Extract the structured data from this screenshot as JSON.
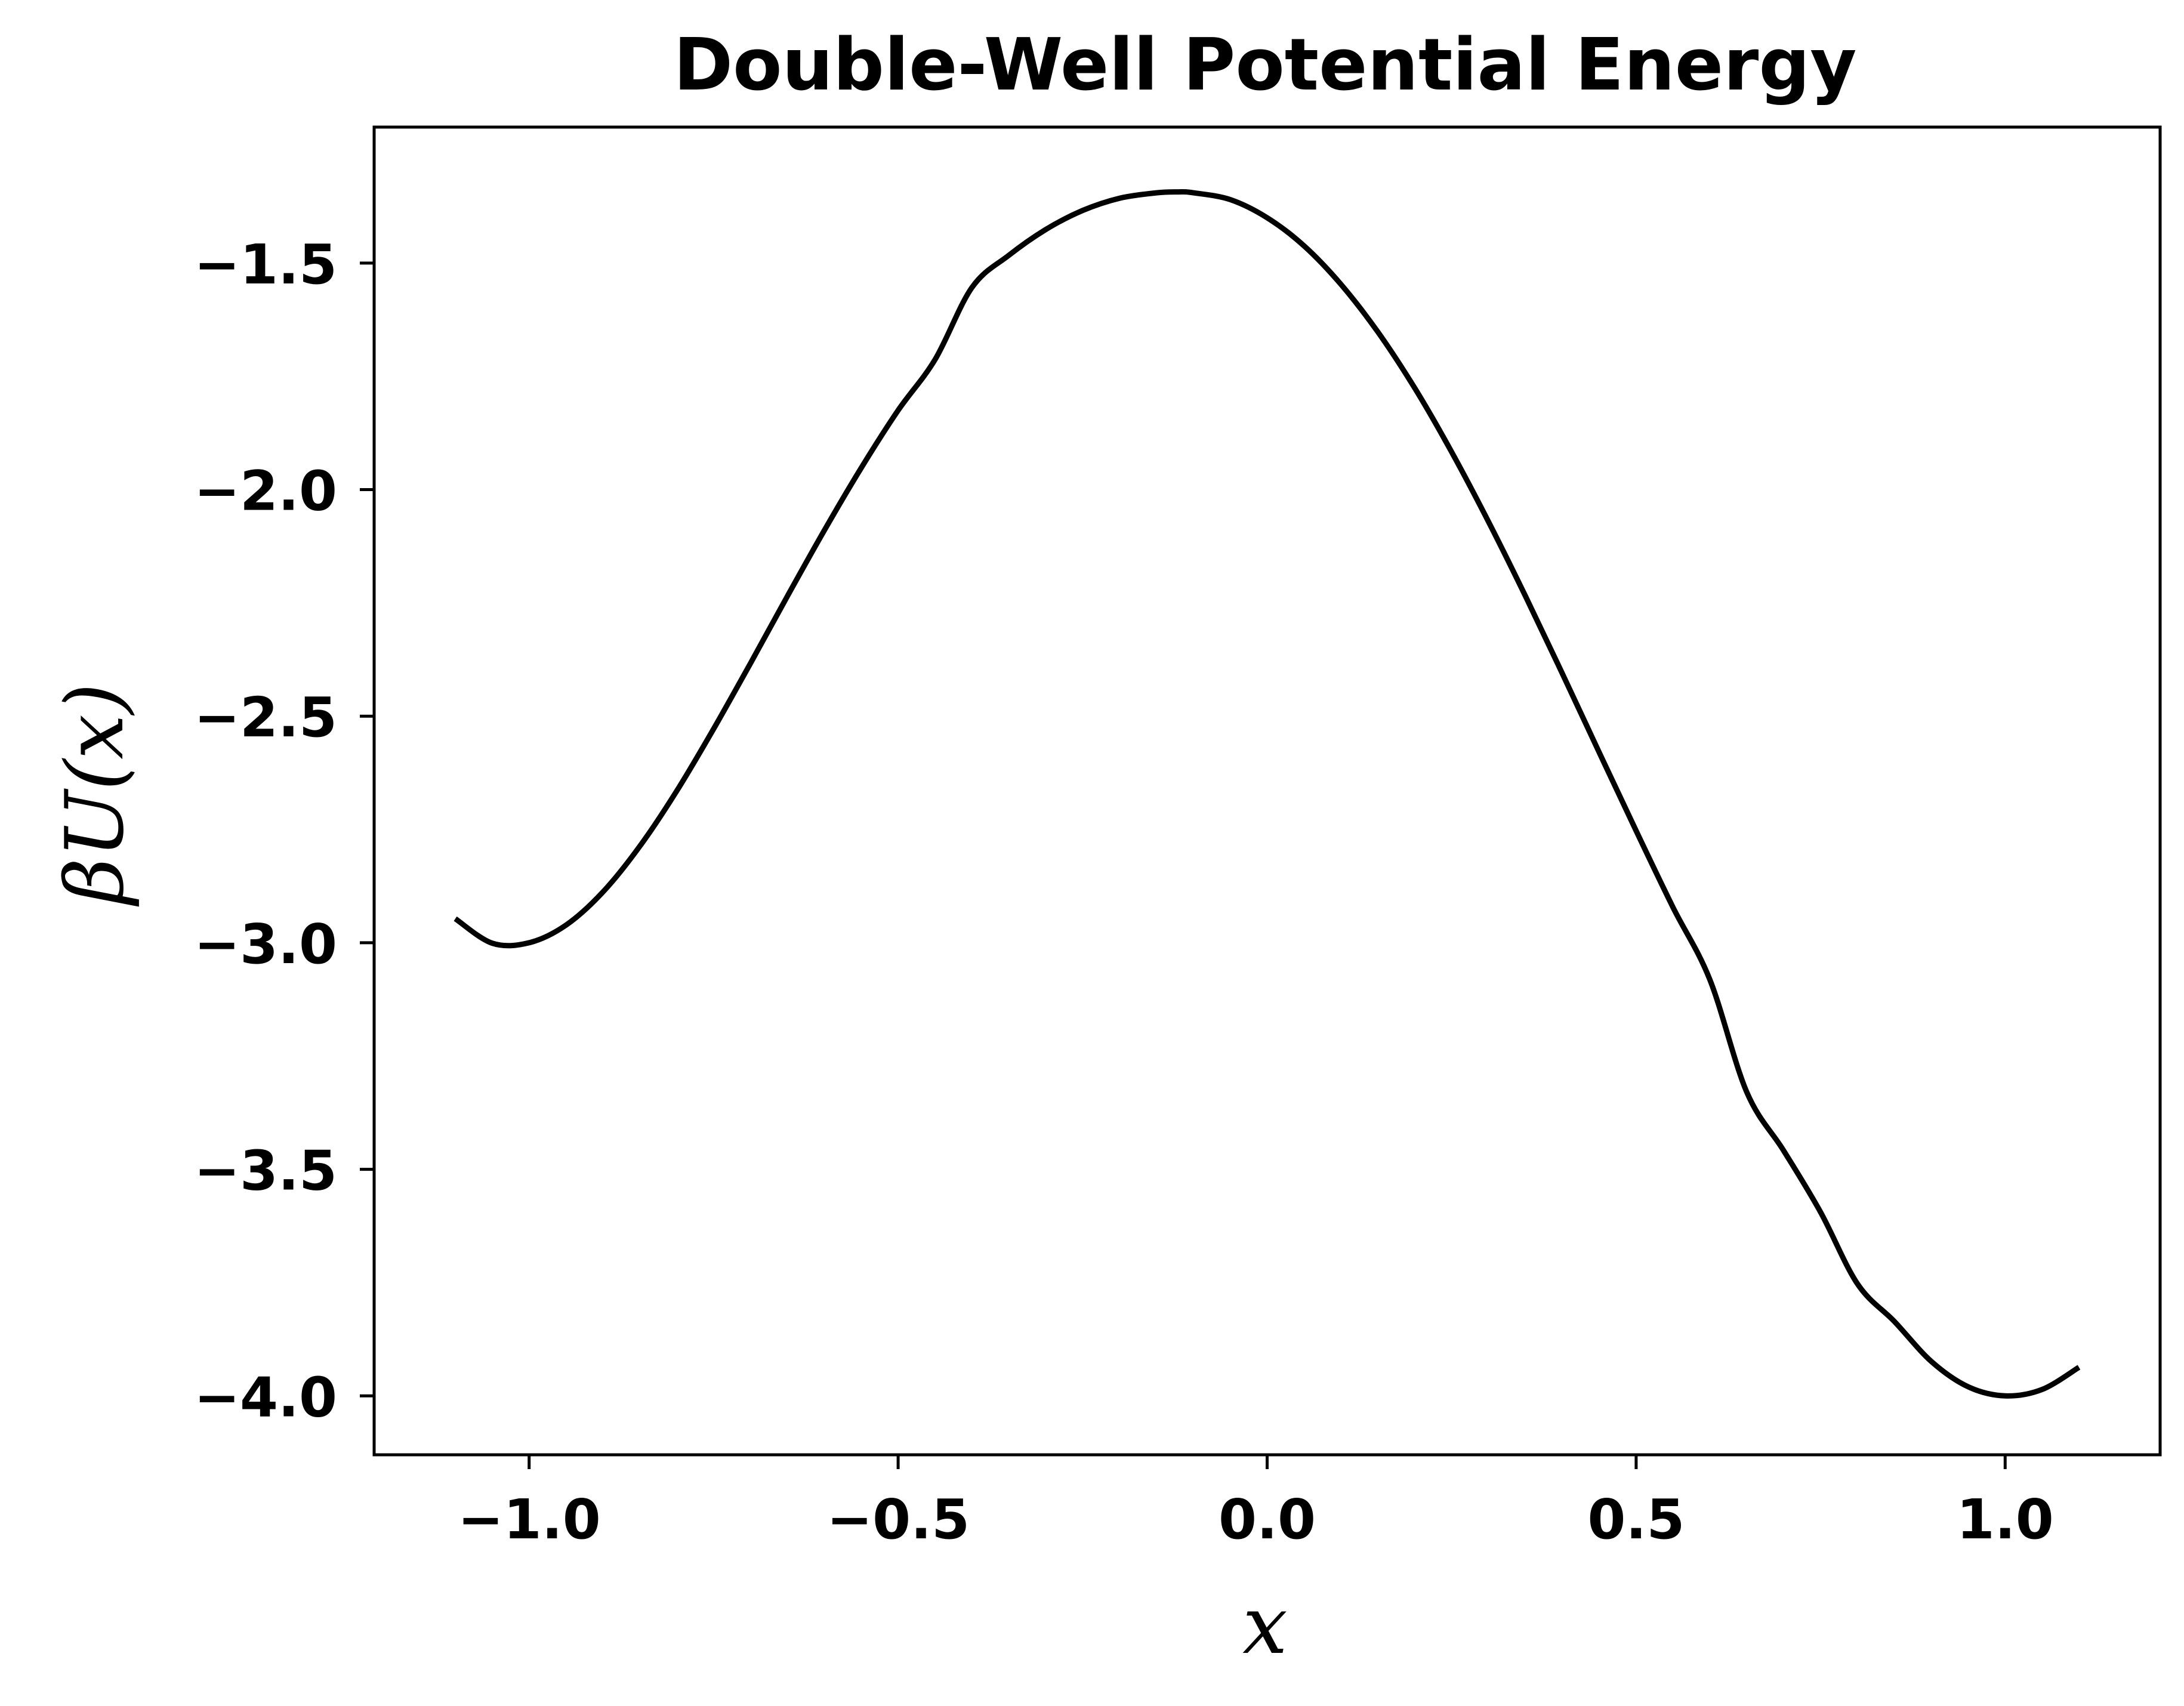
{
  "chart_data": {
    "type": "line",
    "title": "Double-Well Potential Energy",
    "xlabel": "x",
    "ylabel": "βU(x)",
    "xlim": [
      -1.21,
      1.21
    ],
    "ylim": [
      -4.13,
      -1.2
    ],
    "xticks": [
      -1.0,
      -0.5,
      0.0,
      0.5,
      1.0
    ],
    "xtick_labels": [
      "−1.0",
      "−0.5",
      "0.0",
      "0.5",
      "1.0"
    ],
    "yticks": [
      -1.5,
      -2.0,
      -2.5,
      -3.0,
      -3.5,
      -4.0
    ],
    "ytick_labels": [
      "−1.5",
      "−2.0",
      "−2.5",
      "−3.0",
      "−3.5",
      "−4.0"
    ],
    "grid": false,
    "series": [
      {
        "color": "#000000",
        "x": [
          -1.1,
          -1.05,
          -1.0,
          -0.95,
          -0.9,
          -0.85,
          -0.8,
          -0.75,
          -0.7,
          -0.65,
          -0.6,
          -0.55,
          -0.5,
          -0.45,
          -0.4,
          -0.35,
          -0.3,
          -0.25,
          -0.2,
          -0.15,
          -0.12,
          -0.1,
          -0.05,
          0.0,
          0.05,
          0.1,
          0.15,
          0.2,
          0.25,
          0.3,
          0.35,
          0.4,
          0.45,
          0.5,
          0.55,
          0.6,
          0.65,
          0.7,
          0.75,
          0.8,
          0.85,
          0.9,
          0.95,
          1.0,
          1.05,
          1.1
        ],
        "y": [
          -2.947,
          -3.001,
          -3.0,
          -2.961,
          -2.888,
          -2.787,
          -2.665,
          -2.528,
          -2.383,
          -2.235,
          -2.09,
          -1.952,
          -1.825,
          -1.713,
          -1.554,
          -1.483,
          -1.426,
          -1.384,
          -1.357,
          -1.345,
          -1.343,
          -1.345,
          -1.36,
          -1.4,
          -1.462,
          -1.547,
          -1.652,
          -1.776,
          -1.917,
          -2.071,
          -2.235,
          -2.406,
          -2.58,
          -2.753,
          -2.922,
          -3.082,
          -3.33,
          -3.459,
          -3.595,
          -3.753,
          -3.836,
          -3.924,
          -3.98,
          -4.0,
          -3.986,
          -3.937
        ]
      }
    ]
  }
}
